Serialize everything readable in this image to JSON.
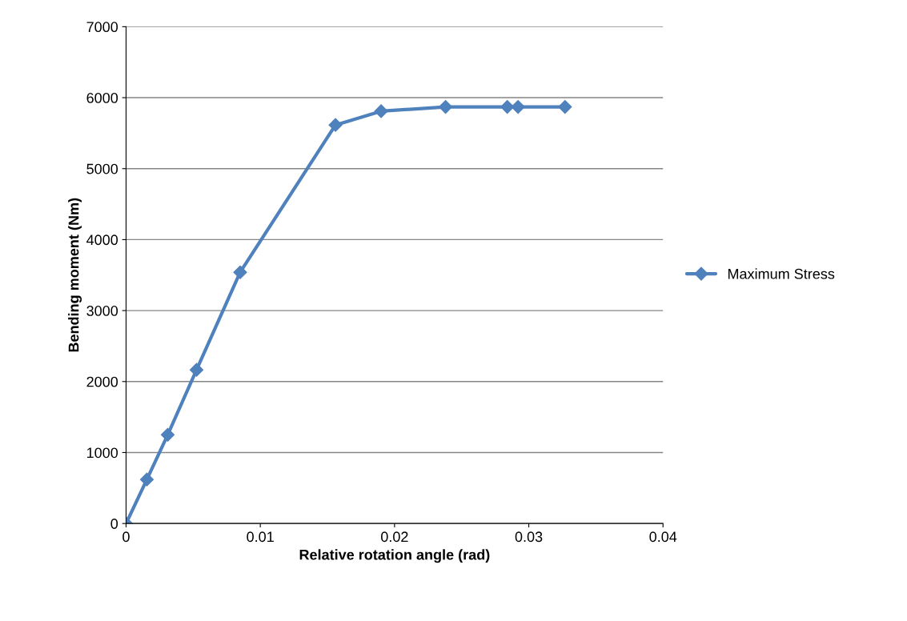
{
  "chart_data": {
    "type": "line",
    "xlabel": "Relative rotation angle (rad)",
    "ylabel": "Bending moment (Nm)",
    "x": [
      0,
      0.00155,
      0.0031,
      0.00525,
      0.0085,
      0.0156,
      0.019,
      0.0238,
      0.0284,
      0.0292,
      0.0327
    ],
    "series": [
      {
        "name": "Maximum Stress",
        "color": "#4f81bd",
        "values": [
          0,
          620,
          1250,
          2165,
          3540,
          5615,
          5810,
          5870,
          5870,
          5870,
          5870
        ]
      }
    ],
    "xlim": [
      0,
      0.04
    ],
    "xticks": [
      0,
      0.01,
      0.02,
      0.03,
      0.04
    ],
    "ylim": [
      0,
      7000
    ],
    "yticks": [
      0,
      1000,
      2000,
      3000,
      4000,
      5000,
      6000,
      7000
    ],
    "grid": "y",
    "legend": "right",
    "marker": "diamond",
    "line_style": "solid"
  }
}
